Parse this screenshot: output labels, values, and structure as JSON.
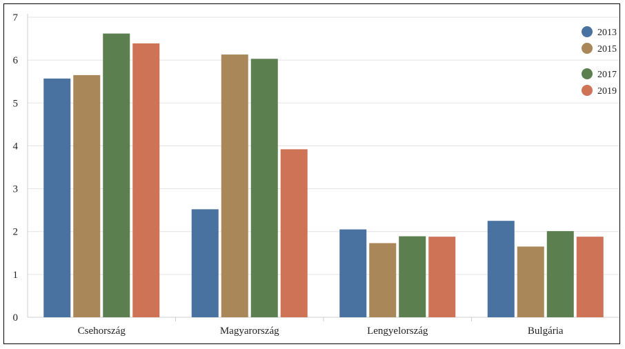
{
  "chart_data": {
    "type": "bar",
    "title": "",
    "xlabel": "",
    "ylabel": "",
    "categories": [
      "Csehország",
      "Magyarország",
      "Lengyelország",
      "Bulgária"
    ],
    "series": [
      {
        "name": "2013",
        "color": "#4a72a0",
        "values": [
          5.57,
          2.52,
          2.05,
          2.25
        ]
      },
      {
        "name": "2015",
        "color": "#a98758",
        "values": [
          5.65,
          6.13,
          1.73,
          1.65
        ]
      },
      {
        "name": "2017",
        "color": "#5c7f4f",
        "values": [
          6.62,
          6.03,
          1.89,
          2.01
        ]
      },
      {
        "name": "2019",
        "color": "#cf7356",
        "values": [
          6.39,
          3.92,
          1.88,
          1.88
        ]
      }
    ],
    "ylim": [
      0,
      7
    ],
    "yticks": [
      0,
      1,
      2,
      3,
      4,
      5,
      6,
      7
    ],
    "grid": true,
    "legend": "top-right"
  }
}
